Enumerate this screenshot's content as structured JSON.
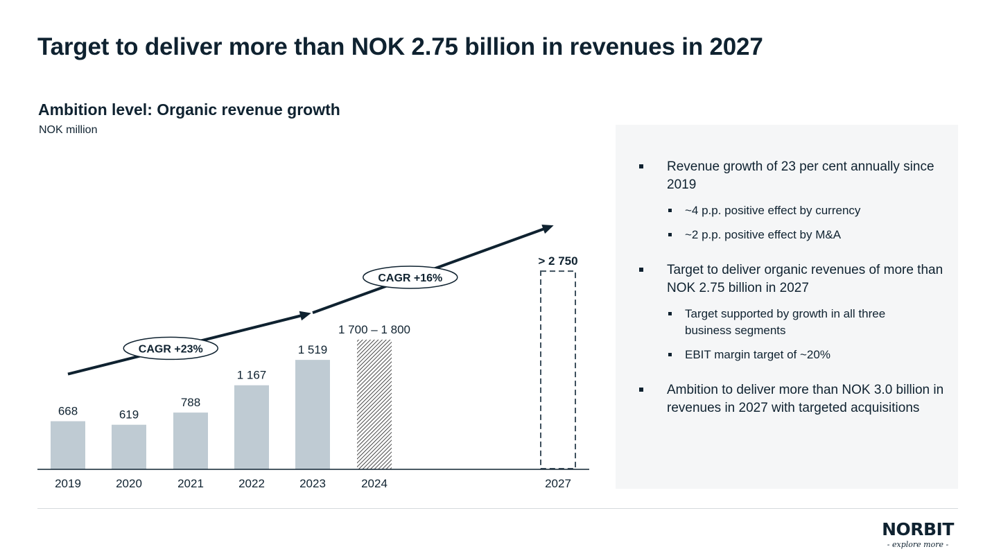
{
  "header": {
    "title": "Target to deliver more than NOK 2.75 billion in revenues in 2027"
  },
  "chart_data": {
    "type": "bar",
    "title": "Ambition level: Organic revenue growth",
    "unit_label": "NOK million",
    "categories": [
      "2019",
      "2020",
      "2021",
      "2022",
      "2023",
      "2024",
      "2027"
    ],
    "bars": [
      {
        "category": "2019",
        "value": 668,
        "label": "668",
        "style": "solid"
      },
      {
        "category": "2020",
        "value": 619,
        "label": "619",
        "style": "solid"
      },
      {
        "category": "2021",
        "value": 788,
        "label": "788",
        "style": "solid"
      },
      {
        "category": "2022",
        "value": 1167,
        "label": "1 167",
        "style": "solid"
      },
      {
        "category": "2023",
        "value": 1519,
        "label": "1 519",
        "style": "solid"
      },
      {
        "category": "2024",
        "value": 1800,
        "value_low": 1700,
        "value_high": 1800,
        "label": "1 700 – 1 800",
        "style": "hatched"
      },
      {
        "category": "2027",
        "value": 2750,
        "label": "> 2 750",
        "style": "dashed-outline"
      }
    ],
    "ylim": [
      0,
      3050
    ],
    "bar_color": "#bfcbd3",
    "annotations": [
      {
        "text": "CAGR +23%",
        "from": "2019",
        "to": "2023"
      },
      {
        "text": "CAGR +16%",
        "from": "2023",
        "to": "2027"
      }
    ],
    "grid": false,
    "legend": "none"
  },
  "panel": {
    "bullets": [
      {
        "text": "Revenue growth of 23 per cent annually since 2019",
        "subs": [
          "~4 p.p. positive effect by currency",
          "~2 p.p. positive effect by M&A"
        ]
      },
      {
        "text": "Target to deliver organic revenues of more than NOK 2.75 billion in 2027",
        "subs": [
          "Target supported by growth in all three business segments",
          "EBIT margin target of ~20%"
        ]
      },
      {
        "text": "Ambition to deliver more than NOK 3.0 billion in revenues in 2027 with targeted acquisitions",
        "subs": []
      }
    ]
  },
  "logo": {
    "name": "NORBIT",
    "tagline": "- explore more -"
  },
  "colors": {
    "text": "#0f2230",
    "bar": "#bfcbd3",
    "panel": "#f5f6f7"
  }
}
